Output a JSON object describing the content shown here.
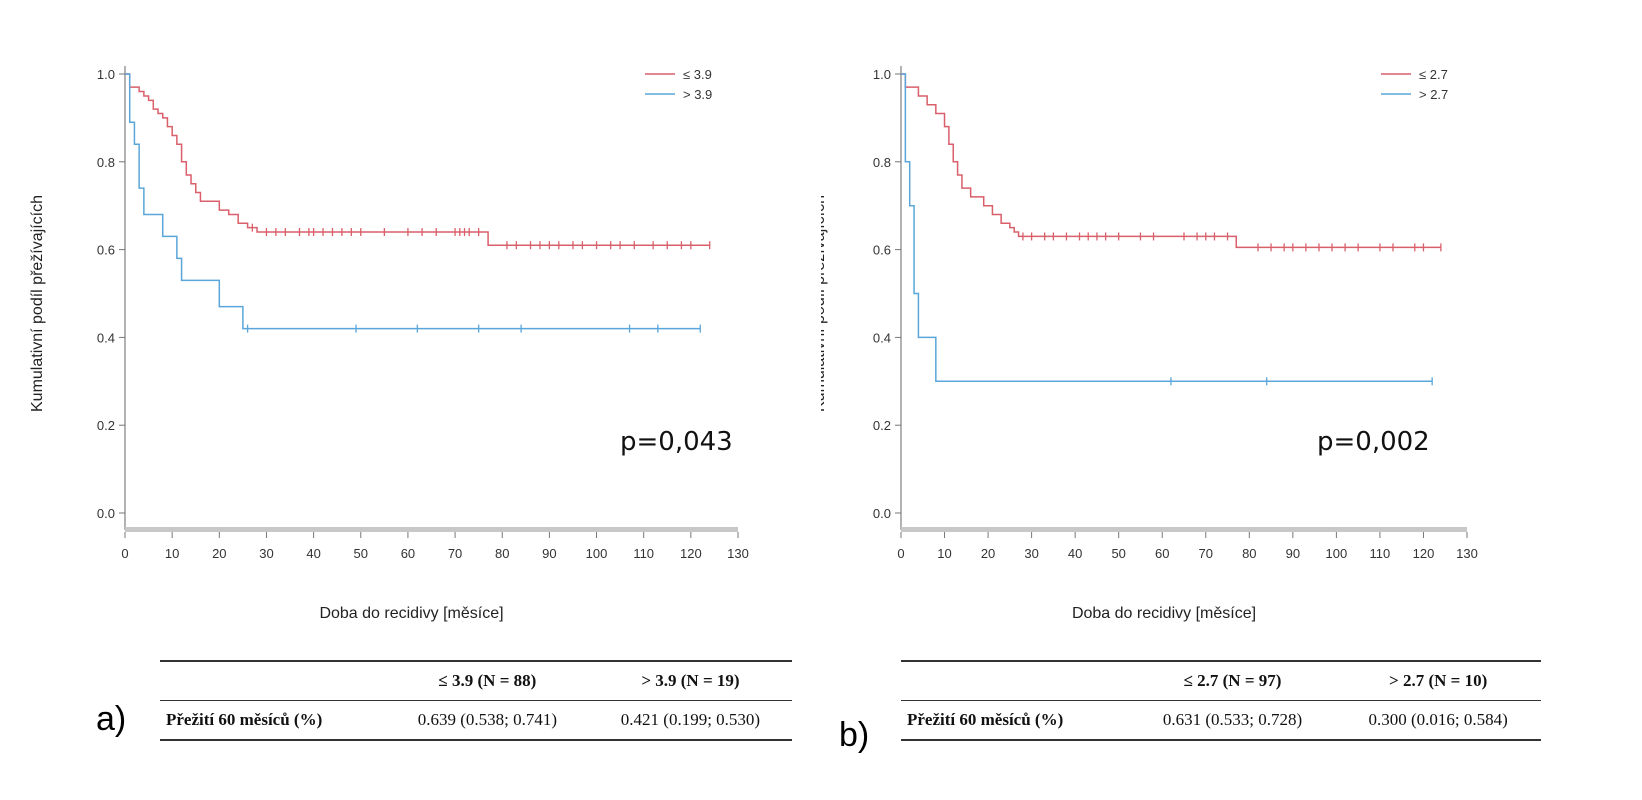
{
  "chart_data": [
    {
      "panel_label": "a)",
      "type": "line",
      "xlabel": "Doba do recidivy [měsíce]",
      "ylabel": "Kumulativní podíl přežívajících",
      "xlim": [
        0,
        130
      ],
      "ylim": [
        0.0,
        1.0
      ],
      "xticks": [
        0,
        10,
        20,
        30,
        40,
        50,
        60,
        70,
        80,
        90,
        100,
        110,
        120,
        130
      ],
      "yticks": [
        "0.0",
        "0.2",
        "0.4",
        "0.6",
        "0.8",
        "1.0"
      ],
      "legend_position": "top-right",
      "annotation": "p=0,043",
      "series": [
        {
          "name": "≤ 3.9",
          "color": "#d95f6a",
          "steps": [
            [
              0,
              1.0
            ],
            [
              1,
              0.97
            ],
            [
              3,
              0.96
            ],
            [
              4,
              0.95
            ],
            [
              5,
              0.94
            ],
            [
              6,
              0.92
            ],
            [
              7,
              0.91
            ],
            [
              8,
              0.9
            ],
            [
              9,
              0.88
            ],
            [
              10,
              0.86
            ],
            [
              11,
              0.84
            ],
            [
              12,
              0.8
            ],
            [
              13,
              0.77
            ],
            [
              14,
              0.75
            ],
            [
              15,
              0.73
            ],
            [
              16,
              0.71
            ],
            [
              20,
              0.69
            ],
            [
              22,
              0.68
            ],
            [
              24,
              0.66
            ],
            [
              26,
              0.65
            ],
            [
              28,
              0.64
            ],
            [
              77,
              0.61
            ],
            [
              124,
              0.61
            ]
          ],
          "censor_times": [
            27,
            30,
            32,
            34,
            37,
            39,
            40,
            42,
            44,
            46,
            48,
            50,
            55,
            60,
            63,
            66,
            70,
            71,
            72,
            73,
            75,
            81,
            83,
            86,
            88,
            90,
            92,
            95,
            97,
            100,
            103,
            105,
            108,
            112,
            115,
            118,
            120,
            124
          ]
        },
        {
          "name": "> 3.9",
          "color": "#5aa6da",
          "steps": [
            [
              0,
              1.0
            ],
            [
              1,
              0.89
            ],
            [
              2,
              0.84
            ],
            [
              3,
              0.74
            ],
            [
              4,
              0.68
            ],
            [
              8,
              0.63
            ],
            [
              11,
              0.58
            ],
            [
              12,
              0.53
            ],
            [
              20,
              0.47
            ],
            [
              25,
              0.42
            ],
            [
              122,
              0.42
            ]
          ],
          "censor_times": [
            26,
            49,
            62,
            75,
            84,
            107,
            113,
            122
          ]
        }
      ]
    },
    {
      "panel_label": "b)",
      "type": "line",
      "xlabel": "Doba do recidivy [měsíce]",
      "ylabel": "Kumulativní podíl přežívajících",
      "xlim": [
        0,
        130
      ],
      "ylim": [
        0.0,
        1.0
      ],
      "xticks": [
        0,
        10,
        20,
        30,
        40,
        50,
        60,
        70,
        80,
        90,
        100,
        110,
        120,
        130
      ],
      "yticks": [
        "0.0",
        "0.2",
        "0.4",
        "0.6",
        "0.8",
        "1.0"
      ],
      "legend_position": "top-right",
      "annotation": "p=0,002",
      "series": [
        {
          "name": "≤ 2.7",
          "color": "#d95f6a",
          "steps": [
            [
              0,
              1.0
            ],
            [
              1,
              0.97
            ],
            [
              4,
              0.95
            ],
            [
              6,
              0.93
            ],
            [
              8,
              0.91
            ],
            [
              10,
              0.88
            ],
            [
              11,
              0.84
            ],
            [
              12,
              0.8
            ],
            [
              13,
              0.77
            ],
            [
              14,
              0.74
            ],
            [
              16,
              0.72
            ],
            [
              19,
              0.7
            ],
            [
              21,
              0.68
            ],
            [
              23,
              0.66
            ],
            [
              25,
              0.65
            ],
            [
              26,
              0.64
            ],
            [
              27,
              0.63
            ],
            [
              77,
              0.605
            ],
            [
              124,
              0.605
            ]
          ],
          "censor_times": [
            28,
            30,
            33,
            35,
            38,
            41,
            43,
            45,
            47,
            50,
            55,
            58,
            65,
            68,
            70,
            72,
            75,
            82,
            85,
            88,
            90,
            93,
            96,
            99,
            102,
            105,
            110,
            113,
            118,
            120,
            124
          ]
        },
        {
          "name": "> 2.7",
          "color": "#5aa6da",
          "steps": [
            [
              0,
              1.0
            ],
            [
              1,
              0.8
            ],
            [
              2,
              0.7
            ],
            [
              3,
              0.5
            ],
            [
              4,
              0.4
            ],
            [
              8,
              0.3
            ],
            [
              122,
              0.3
            ]
          ],
          "censor_times": [
            62,
            84,
            122
          ]
        }
      ]
    }
  ],
  "tables": [
    {
      "headers": [
        "",
        "≤ 3.9 (N = 88)",
        "> 3.9 (N = 19)"
      ],
      "row_label": "Přežití 60 měsíců (%)",
      "values": [
        "0.639 (0.538; 0.741)",
        "0.421 (0.199; 0.530)"
      ]
    },
    {
      "headers": [
        "",
        "≤ 2.7 (N = 97)",
        "> 2.7 (N = 10)"
      ],
      "row_label": "Přežití 60 měsíců (%)",
      "values": [
        "0.631 (0.533; 0.728)",
        "0.300 (0.016; 0.584)"
      ]
    }
  ]
}
